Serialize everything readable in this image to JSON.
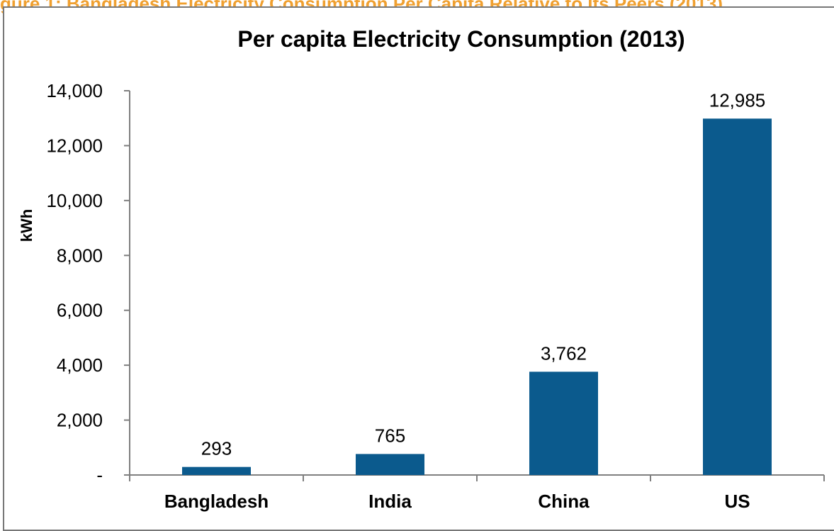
{
  "caption": "gure 1: Bangladesh Electricity Consumption Per Capita Relative to Its Peers (2013)",
  "chart_data": {
    "type": "bar",
    "title": "Per capita Electricity Consumption  (2013)",
    "xlabel": "",
    "ylabel": "kWh",
    "categories": [
      "Bangladesh",
      "India",
      "China",
      "US"
    ],
    "values": [
      293,
      765,
      3762,
      12985
    ],
    "value_labels": [
      "293",
      "765",
      "3,762",
      "12,985"
    ],
    "ylim": [
      0,
      14000
    ],
    "yticks": [
      0,
      2000,
      4000,
      6000,
      8000,
      10000,
      12000,
      14000
    ],
    "ytick_labels": [
      "-",
      "2,000",
      "4,000",
      "6,000",
      "8,000",
      "10,000",
      "12,000",
      "14,000"
    ],
    "grid": false,
    "legend": "none",
    "bar_color": "#0b5a8d"
  }
}
